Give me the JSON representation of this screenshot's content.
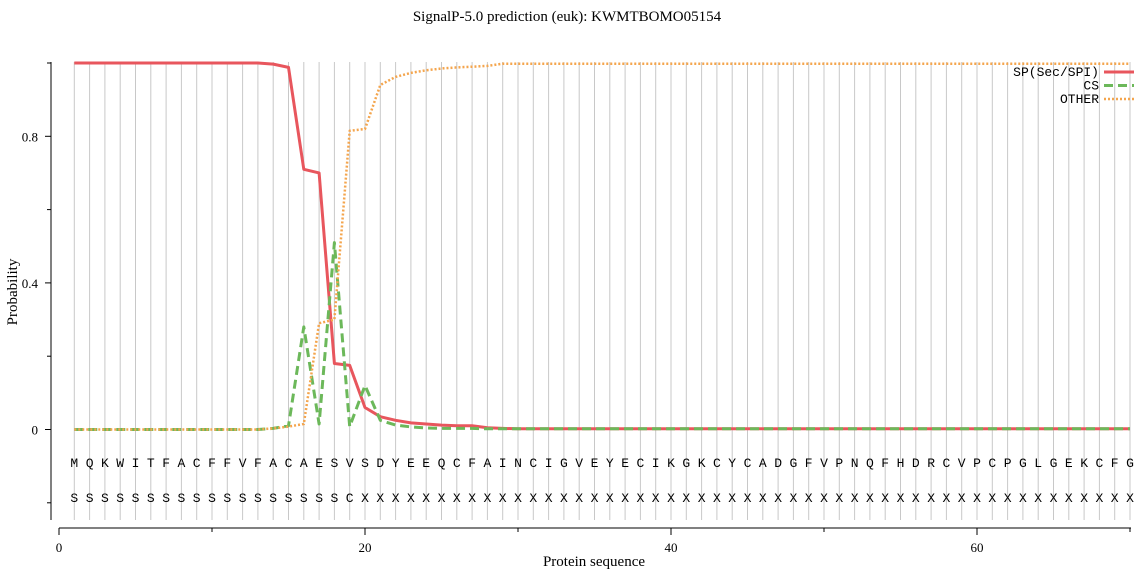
{
  "chart_data": {
    "type": "line",
    "title": "SignalP-5.0 prediction (euk):  KWMTBOMO05154",
    "xlabel": "Protein sequence",
    "ylabel": "Probability",
    "xlim": [
      0,
      70
    ],
    "ylim": [
      -0.2,
      1.02
    ],
    "x_ticks": [
      0,
      20,
      40,
      60
    ],
    "x_tick_labels": [
      "0",
      "20",
      "40",
      "60"
    ],
    "x_minor_ticks": [
      10,
      30,
      50,
      70
    ],
    "y_ticks": [
      0,
      0.4,
      0.8
    ],
    "y_tick_labels": [
      "0",
      "0.4",
      "0.8"
    ],
    "y_minor_ticks": [
      -0.2,
      0.2,
      0.6,
      1.0
    ],
    "grid": "vertical lines at each residue position",
    "legend_position": "top-right",
    "x": [
      1,
      2,
      3,
      4,
      5,
      6,
      7,
      8,
      9,
      10,
      11,
      12,
      13,
      14,
      15,
      16,
      17,
      18,
      19,
      20,
      21,
      22,
      23,
      24,
      25,
      26,
      27,
      28,
      29,
      30,
      31,
      32,
      33,
      34,
      35,
      36,
      37,
      38,
      39,
      40,
      41,
      42,
      43,
      44,
      45,
      46,
      47,
      48,
      49,
      50,
      51,
      52,
      53,
      54,
      55,
      56,
      57,
      58,
      59,
      60,
      61,
      62,
      63,
      64,
      65,
      66,
      67,
      68,
      69,
      70
    ],
    "series": [
      {
        "name": "SP(Sec/SPI)",
        "color": "#e8565d",
        "style": "solid",
        "values": [
          1.0,
          1.0,
          1.0,
          1.0,
          1.0,
          1.0,
          1.0,
          1.0,
          1.0,
          1.0,
          1.0,
          1.0,
          1.0,
          0.997,
          0.988,
          0.71,
          0.7,
          0.18,
          0.175,
          0.06,
          0.035,
          0.025,
          0.018,
          0.015,
          0.012,
          0.01,
          0.01,
          0.005,
          0.003,
          0.002,
          0.002,
          0.002,
          0.002,
          0.002,
          0.002,
          0.002,
          0.002,
          0.002,
          0.002,
          0.002,
          0.002,
          0.002,
          0.002,
          0.002,
          0.002,
          0.002,
          0.002,
          0.002,
          0.002,
          0.002,
          0.002,
          0.002,
          0.002,
          0.002,
          0.002,
          0.002,
          0.002,
          0.002,
          0.002,
          0.002,
          0.002,
          0.002,
          0.002,
          0.002,
          0.002,
          0.002,
          0.002,
          0.002,
          0.002,
          0.002
        ]
      },
      {
        "name": "CS",
        "color": "#6cb85a",
        "style": "dashed",
        "values": [
          0,
          0,
          0,
          0,
          0,
          0,
          0,
          0,
          0,
          0,
          0,
          0,
          0,
          0.003,
          0.01,
          0.28,
          0.015,
          0.51,
          0.008,
          0.12,
          0.025,
          0.012,
          0.007,
          0.004,
          0.003,
          0.003,
          0.003,
          0.002,
          0.002,
          0.002,
          0.002,
          0.002,
          0.002,
          0.002,
          0.002,
          0.002,
          0.002,
          0.002,
          0.002,
          0.002,
          0.002,
          0.002,
          0.002,
          0.002,
          0.002,
          0.002,
          0.002,
          0.002,
          0.002,
          0.002,
          0.002,
          0.002,
          0.002,
          0.002,
          0.002,
          0.002,
          0.002,
          0.002,
          0.002,
          0.002,
          0.002,
          0.002,
          0.002,
          0.002,
          0.002,
          0.002,
          0.002,
          0.002,
          0.002,
          0.002
        ]
      },
      {
        "name": "OTHER",
        "color": "#f4a54d",
        "style": "dotted",
        "values": [
          0,
          0,
          0,
          0,
          0,
          0,
          0,
          0,
          0,
          0,
          0,
          0,
          0,
          0.003,
          0.008,
          0.015,
          0.29,
          0.3,
          0.815,
          0.82,
          0.94,
          0.962,
          0.973,
          0.98,
          0.985,
          0.988,
          0.99,
          0.992,
          0.998,
          0.998,
          0.998,
          0.998,
          0.998,
          0.998,
          0.998,
          0.998,
          0.998,
          0.998,
          0.998,
          0.998,
          0.998,
          0.998,
          0.998,
          0.998,
          0.998,
          0.998,
          0.998,
          0.998,
          0.998,
          0.998,
          0.998,
          0.998,
          0.998,
          0.998,
          0.998,
          0.998,
          0.998,
          0.998,
          0.998,
          0.998,
          0.998,
          0.998,
          0.998,
          0.998,
          0.998,
          0.998,
          0.998,
          0.998,
          0.998,
          0.998
        ]
      }
    ],
    "sequence": [
      "M",
      "Q",
      "K",
      "W",
      "I",
      "T",
      "F",
      "A",
      "C",
      "F",
      "F",
      "V",
      "F",
      "A",
      "C",
      "A",
      "E",
      "S",
      "V",
      "S",
      "D",
      "Y",
      "E",
      "E",
      "Q",
      "C",
      "F",
      "A",
      "I",
      "N",
      "C",
      "I",
      "G",
      "V",
      "E",
      "Y",
      "E",
      "C",
      "I",
      "K",
      "G",
      "K",
      "C",
      "Y",
      "C",
      "A",
      "D",
      "G",
      "F",
      "V",
      "P",
      "N",
      "Q",
      "F",
      "H",
      "D",
      "R",
      "C",
      "V",
      "P",
      "C",
      "P",
      "G",
      "L",
      "G",
      "E",
      "K",
      "C",
      "F",
      "G"
    ],
    "annotation": [
      "S",
      "S",
      "S",
      "S",
      "S",
      "S",
      "S",
      "S",
      "S",
      "S",
      "S",
      "S",
      "S",
      "S",
      "S",
      "S",
      "S",
      "S",
      "C",
      "X",
      "X",
      "X",
      "X",
      "X",
      "X",
      "X",
      "X",
      "X",
      "X",
      "X",
      "X",
      "X",
      "X",
      "X",
      "X",
      "X",
      "X",
      "X",
      "X",
      "X",
      "X",
      "X",
      "X",
      "X",
      "X",
      "X",
      "X",
      "X",
      "X",
      "X",
      "X",
      "X",
      "X",
      "X",
      "X",
      "X",
      "X",
      "X",
      "X",
      "X",
      "X",
      "X",
      "X",
      "X",
      "X",
      "X",
      "X",
      "X",
      "X",
      "X"
    ]
  }
}
